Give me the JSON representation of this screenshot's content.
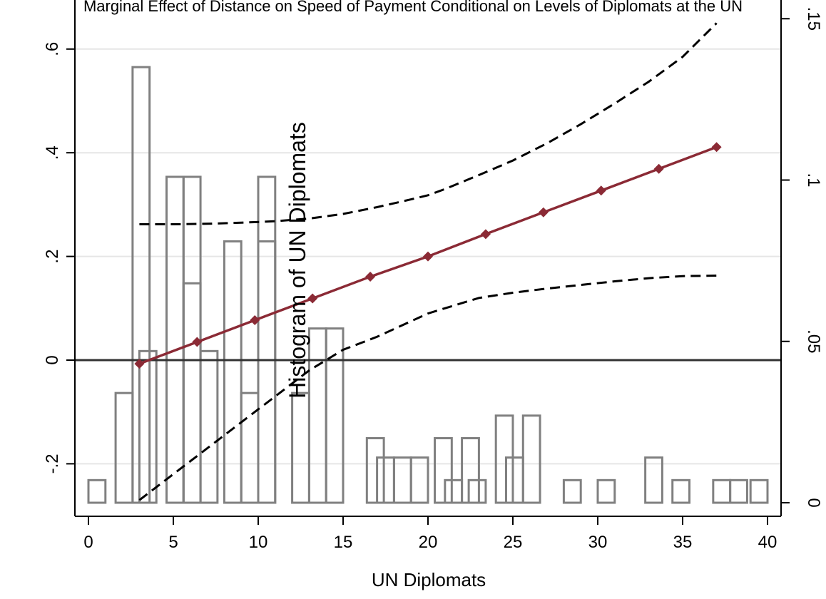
{
  "chart_data": {
    "type": "line",
    "title": "Marginal Effect of Distance on Speed of Payment Conditional on Levels of Diplomats at the UN",
    "xlabel": "UN Diplomats",
    "ylabel_right": "Histogram of UN Diplomats",
    "xlim": [
      0,
      40
    ],
    "ylim": [
      -0.3,
      0.7
    ],
    "y2lim": [
      0,
      0.16
    ],
    "x_ticks": [
      0,
      5,
      10,
      15,
      20,
      25,
      30,
      35,
      40
    ],
    "x_tick_labels": [
      "0",
      "5",
      "10",
      "15",
      "20",
      "25",
      "30",
      "35",
      "40"
    ],
    "y_ticks": [
      -0.2,
      0,
      0.2,
      0.4,
      0.6
    ],
    "y_tick_labels": [
      "-.2",
      "0",
      ".2",
      ".4",
      ".6"
    ],
    "y2_ticks": [
      0,
      0.05,
      0.1,
      0.15
    ],
    "y2_tick_labels": [
      "0",
      ".05",
      ".1",
      ".15"
    ],
    "grid": true,
    "zero_line": true,
    "series": [
      {
        "role": "marginal_effect",
        "color": "#8b2a35",
        "style": "solid",
        "marker": "diamond",
        "x": [
          3,
          6.4,
          9.8,
          13.2,
          16.6,
          20,
          23.4,
          26.8,
          30.2,
          33.6,
          37
        ],
        "values": [
          -0.007,
          0.035,
          0.077,
          0.119,
          0.161,
          0.2,
          0.243,
          0.285,
          0.327,
          0.369,
          0.411
        ]
      },
      {
        "role": "upper_ci",
        "color": "#000000",
        "style": "dashed",
        "x": [
          3,
          5,
          7,
          9,
          11,
          13,
          15,
          17,
          19,
          20,
          21,
          23,
          25,
          27,
          29,
          31,
          33,
          35,
          37
        ],
        "values": [
          0.262,
          0.262,
          0.263,
          0.265,
          0.268,
          0.273,
          0.282,
          0.295,
          0.31,
          0.318,
          0.33,
          0.357,
          0.385,
          0.418,
          0.455,
          0.495,
          0.537,
          0.585,
          0.65
        ]
      },
      {
        "role": "lower_ci",
        "color": "#000000",
        "style": "dashed",
        "x": [
          3,
          5,
          7,
          9,
          11,
          13,
          15,
          17,
          19,
          20,
          21,
          23,
          25,
          27,
          29,
          31,
          33,
          35,
          37
        ],
        "values": [
          -0.27,
          -0.22,
          -0.17,
          -0.12,
          -0.07,
          -0.02,
          0.02,
          0.045,
          0.075,
          0.09,
          0.1,
          0.12,
          0.13,
          0.138,
          0.145,
          0.152,
          0.158,
          0.162,
          0.163
        ]
      }
    ],
    "histogram": {
      "color": "#808080",
      "bin_width": 1,
      "bins": [
        {
          "x0": 0,
          "value": 0.007
        },
        {
          "x0": 1.6,
          "value": 0.034
        },
        {
          "x0": 2.6,
          "value": 0.135
        },
        {
          "x0": 3.0,
          "value": 0.047
        },
        {
          "x0": 4.6,
          "value": 0.101
        },
        {
          "x0": 5.6,
          "value": 0.068
        },
        {
          "x0": 5.6,
          "value": 0.101
        },
        {
          "x0": 6.6,
          "value": 0.047
        },
        {
          "x0": 8.0,
          "value": 0.081
        },
        {
          "x0": 9.0,
          "value": 0.034
        },
        {
          "x0": 10.0,
          "value": 0.081
        },
        {
          "x0": 10.0,
          "value": 0.101
        },
        {
          "x0": 12.0,
          "value": 0.034
        },
        {
          "x0": 13.0,
          "value": 0.054
        },
        {
          "x0": 14.0,
          "value": 0.054
        },
        {
          "x0": 16.4,
          "value": 0.02
        },
        {
          "x0": 17.0,
          "value": 0.014
        },
        {
          "x0": 18.0,
          "value": 0.014
        },
        {
          "x0": 19.0,
          "value": 0.014
        },
        {
          "x0": 20.4,
          "value": 0.02
        },
        {
          "x0": 21.0,
          "value": 0.007
        },
        {
          "x0": 22.0,
          "value": 0.02
        },
        {
          "x0": 22.4,
          "value": 0.007
        },
        {
          "x0": 24.0,
          "value": 0.027
        },
        {
          "x0": 24.6,
          "value": 0.014
        },
        {
          "x0": 25.6,
          "value": 0.027
        },
        {
          "x0": 28.0,
          "value": 0.007
        },
        {
          "x0": 30.0,
          "value": 0.007
        },
        {
          "x0": 32.8,
          "value": 0.014
        },
        {
          "x0": 34.4,
          "value": 0.007
        },
        {
          "x0": 36.8,
          "value": 0.007
        },
        {
          "x0": 37.8,
          "value": 0.007
        },
        {
          "x0": 39.0,
          "value": 0.007
        }
      ]
    }
  }
}
